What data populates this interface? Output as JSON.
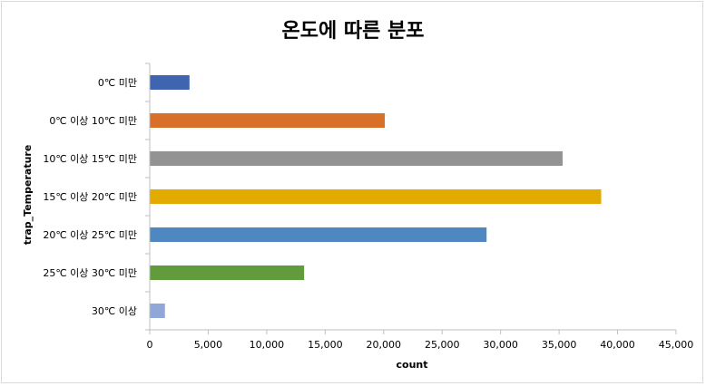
{
  "chart_data": {
    "type": "bar",
    "orientation": "horizontal",
    "title": "온도에 따른 분포",
    "xlabel": "count",
    "ylabel": "trap_Temperature",
    "xlim": [
      0,
      45000
    ],
    "xticks": [
      0,
      5000,
      10000,
      15000,
      20000,
      25000,
      30000,
      35000,
      40000,
      45000
    ],
    "xtick_labels": [
      "0",
      "5,000",
      "10,000",
      "15,000",
      "20,000",
      "25,000",
      "30,000",
      "35,000",
      "40,000",
      "45,000"
    ],
    "grid": false,
    "legend": "none",
    "categories": [
      "0℃ 미만",
      "0℃ 이상 10℃ 미만",
      "10℃ 이상 15℃ 미만",
      "15℃ 이상 20℃ 미만",
      "20℃ 이상 25℃ 미만",
      "25℃ 이상 30℃ 미만",
      "30℃ 이상"
    ],
    "values": [
      3400,
      20100,
      35300,
      38600,
      28800,
      13200,
      1300
    ],
    "colors": [
      "#4065b0",
      "#d9702a",
      "#939393",
      "#e3aa00",
      "#4f87c0",
      "#629b3c",
      "#91a7d8"
    ]
  }
}
